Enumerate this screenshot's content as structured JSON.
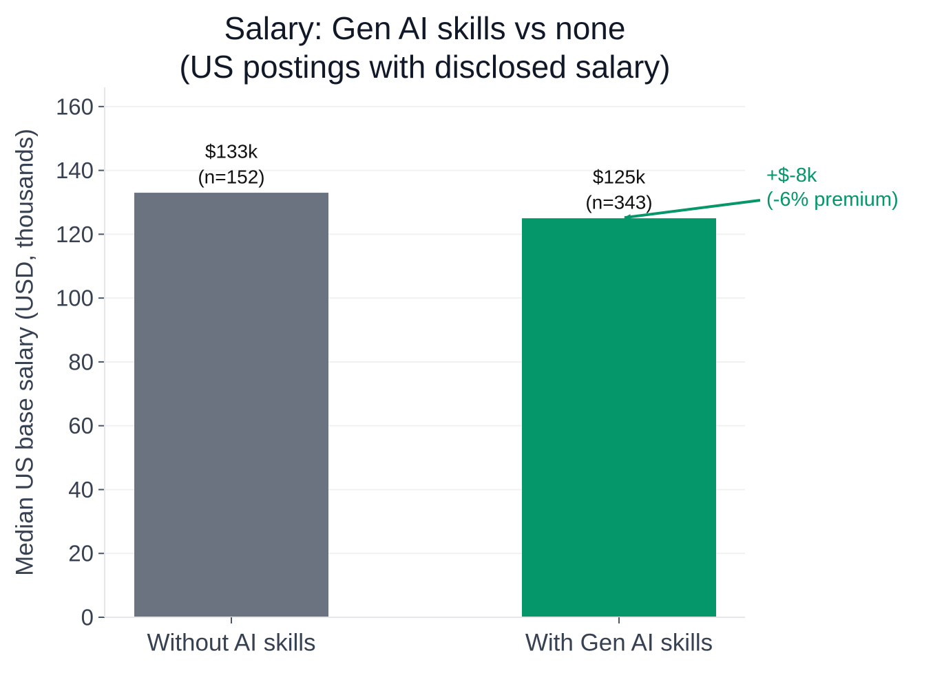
{
  "chart_data": {
    "type": "bar",
    "title": [
      "Salary: Gen AI skills vs none",
      "(US postings with disclosed salary)"
    ],
    "ylabel": "Median US base salary (USD, thousands)",
    "xlabel": "",
    "ylim": [
      0,
      166
    ],
    "yticks": [
      0,
      20,
      40,
      60,
      80,
      100,
      120,
      140,
      160
    ],
    "grid": "horizontal",
    "categories": [
      "Without AI skills",
      "With Gen AI skills"
    ],
    "values": [
      133,
      125
    ],
    "colors": [
      "#6b7280",
      "#059669"
    ],
    "value_labels": [
      [
        "$133k",
        "(n=152)"
      ],
      [
        "$125k",
        "(n=343)"
      ]
    ],
    "annotation": {
      "lines": [
        "+$-8k",
        "(-6% premium)"
      ],
      "target_category": "With Gen AI skills",
      "color": "#059669"
    }
  }
}
